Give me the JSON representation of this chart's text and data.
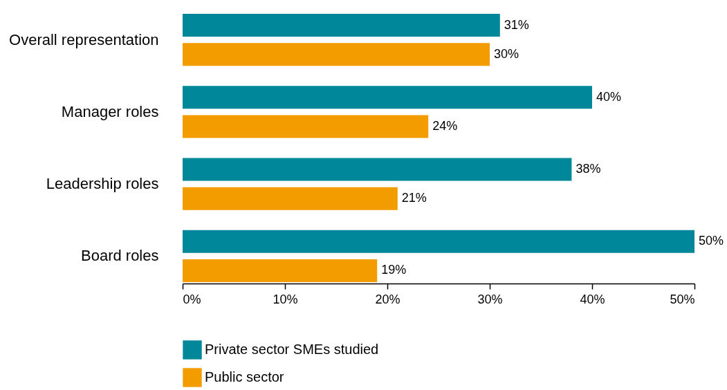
{
  "chart_data": {
    "type": "bar",
    "orientation": "horizontal",
    "categories": [
      "Overall representation",
      "Manager roles",
      "Leadership roles",
      "Board roles"
    ],
    "series": [
      {
        "name": "Private sector SMEs studied",
        "color": "#00889a",
        "values": [
          31,
          40,
          38,
          50
        ],
        "value_labels": [
          "31%",
          "40%",
          "38%",
          "50%"
        ]
      },
      {
        "name": "Public sector",
        "color": "#f39c00",
        "values": [
          30,
          24,
          21,
          19
        ],
        "value_labels": [
          "30%",
          "24%",
          "21%",
          "19%"
        ]
      }
    ],
    "xlim": [
      0,
      50
    ],
    "xticks": [
      {
        "value": 0,
        "label": "0%"
      },
      {
        "value": 10,
        "label": "10%"
      },
      {
        "value": 20,
        "label": "20%"
      },
      {
        "value": 30,
        "label": "30%"
      },
      {
        "value": 40,
        "label": "40%"
      },
      {
        "value": 50,
        "label": "50%"
      }
    ],
    "grid": false,
    "legend": "bottom"
  }
}
